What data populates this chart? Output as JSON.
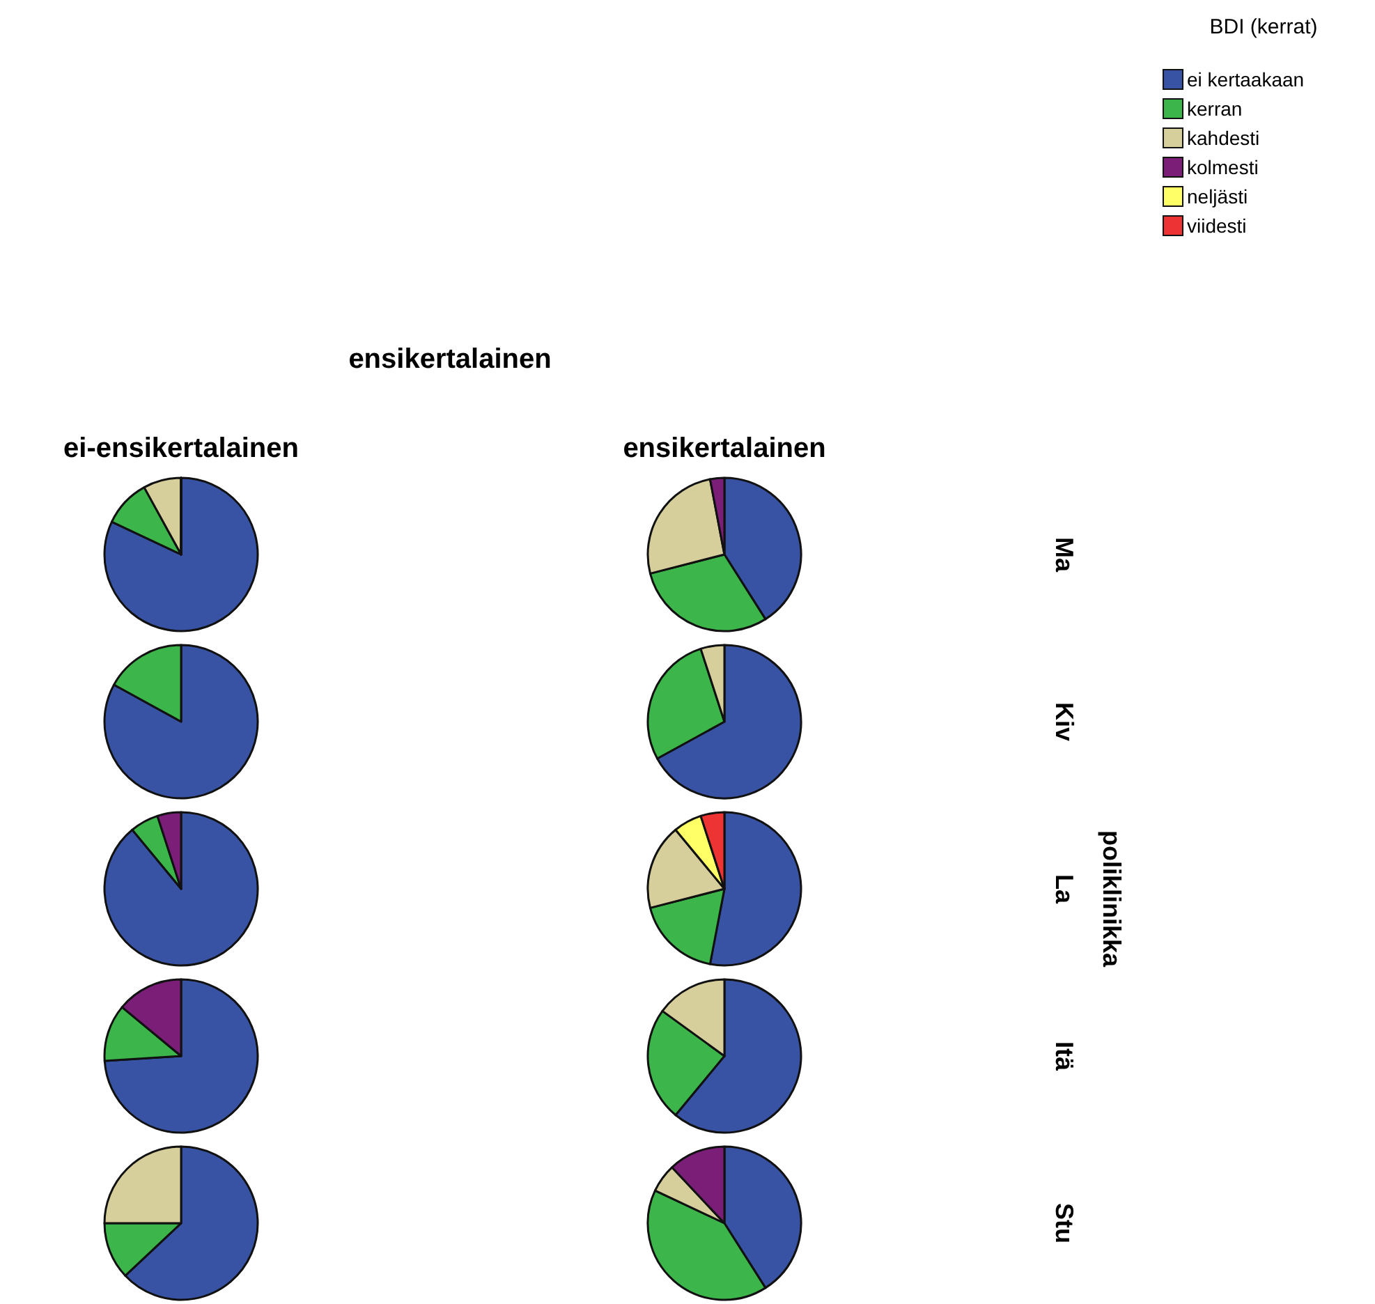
{
  "chart_data": [
    {
      "type": "pie",
      "title": "ei-ensikertalainen",
      "legend": "top right",
      "legend_title": "BDI (kerrat)",
      "annotations": [
        "ensikertalainen",
        "poliklinikka"
      ],
      "categories": [
        "ei kertaakaan",
        "kerran",
        "kahdesti",
        "kolmesti",
        "neljästi",
        "viidesti"
      ],
      "values": [
        82,
        10,
        8,
        0,
        0,
        0
      ],
      "colors": [
        "#3953a4",
        "#3cb54a",
        "#d6cf9c",
        "#7a1e78",
        "#ffff66",
        "#ee3333"
      ]
    },
    {
      "type": "pie",
      "title": "ensikertalainen",
      "ylabel": "Ma",
      "categories": [
        null,
        null,
        null,
        null
      ],
      "values": [
        41,
        30,
        26,
        3
      ],
      "colors": [
        "#3953a4",
        "#3cb54a",
        "#d6cf9c",
        "#7a1e78"
      ]
    },
    {
      "type": "pie",
      "categories": [
        null,
        null
      ],
      "values": [
        83,
        17
      ],
      "colors": [
        "#3953a4",
        "#3cb54a"
      ]
    },
    {
      "type": "pie",
      "ylabel": "Kiv",
      "categories": [
        null,
        null,
        null
      ],
      "values": [
        67,
        28,
        5
      ],
      "colors": [
        "#3953a4",
        "#3cb54a",
        "#d6cf9c"
      ]
    },
    {
      "type": "pie",
      "categories": [
        null,
        null,
        null
      ],
      "values": [
        89,
        6,
        5
      ],
      "colors": [
        "#3953a4",
        "#3cb54a",
        "#7a1e78"
      ]
    },
    {
      "type": "pie",
      "ylabel": "La",
      "categories": [
        null,
        null,
        null,
        null,
        null
      ],
      "values": [
        53,
        18,
        18,
        6,
        5
      ],
      "colors": [
        "#3953a4",
        "#3cb54a",
        "#d6cf9c",
        "#ffff66",
        "#ee3333"
      ]
    },
    {
      "type": "pie",
      "categories": [
        null,
        null,
        null
      ],
      "values": [
        74,
        12,
        14
      ],
      "colors": [
        "#3953a4",
        "#3cb54a",
        "#7a1e78"
      ]
    },
    {
      "type": "pie",
      "ylabel": "Itä",
      "categories": [
        null,
        null,
        null
      ],
      "values": [
        61,
        24,
        15
      ],
      "colors": [
        "#3953a4",
        "#3cb54a",
        "#d6cf9c"
      ]
    },
    {
      "type": "pie",
      "categories": [
        null,
        null,
        null
      ],
      "values": [
        63,
        12,
        25
      ],
      "colors": [
        "#3953a4",
        "#3cb54a",
        "#d6cf9c"
      ]
    },
    {
      "type": "pie",
      "ylabel": "Stu",
      "categories": [
        null,
        null,
        null,
        null
      ],
      "values": [
        41,
        41,
        6,
        12
      ],
      "colors": [
        "#3953a4",
        "#3cb54a",
        "#d6cf9c",
        "#7a1e78"
      ]
    }
  ]
}
